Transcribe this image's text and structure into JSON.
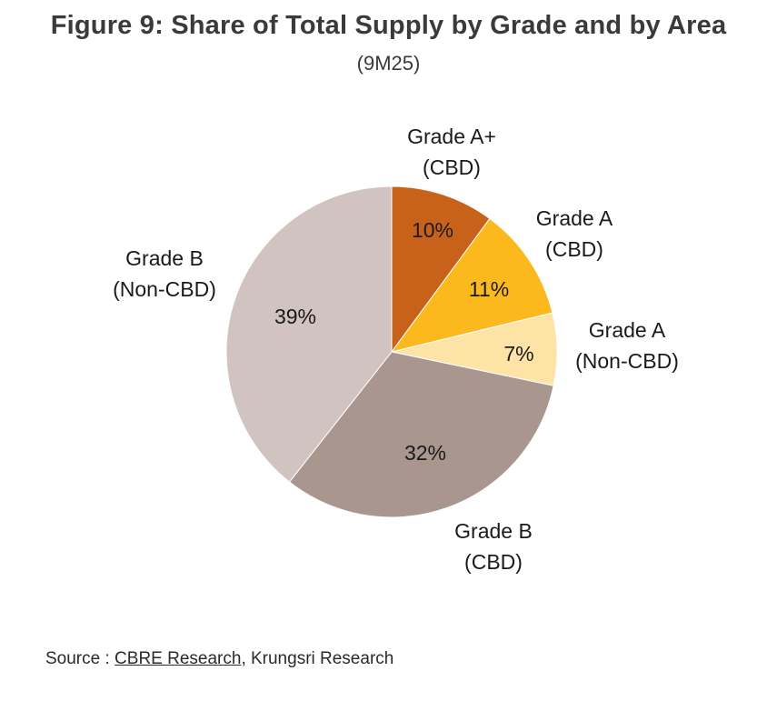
{
  "chart_data": {
    "type": "pie",
    "title": "Figure 9: Share of Total Supply by Grade and by Area",
    "subtitle": "(9M25)",
    "slices": [
      {
        "label_line1": "Grade A+",
        "label_line2": "(CBD)",
        "value": 10,
        "value_label": "10%",
        "color": "#C8621B"
      },
      {
        "label_line1": "Grade A",
        "label_line2": "(CBD)",
        "value": 11,
        "value_label": "11%",
        "color": "#FBB91E"
      },
      {
        "label_line1": "Grade A",
        "label_line2": "(Non-CBD)",
        "value": 7,
        "value_label": "7%",
        "color": "#FDE3A6"
      },
      {
        "label_line1": "Grade B",
        "label_line2": "(CBD)",
        "value": 32,
        "value_label": "32%",
        "color": "#A9968F"
      },
      {
        "label_line1": "Grade B",
        "label_line2": "(Non-CBD)",
        "value": 39,
        "value_label": "39%",
        "color": "#D1C3C0"
      }
    ],
    "start_angle": "12 o'clock",
    "direction": "clockwise"
  },
  "source": {
    "prefix": "Source : ",
    "link_text": "CBRE Research",
    "suffix": ", Krungsri Research"
  }
}
